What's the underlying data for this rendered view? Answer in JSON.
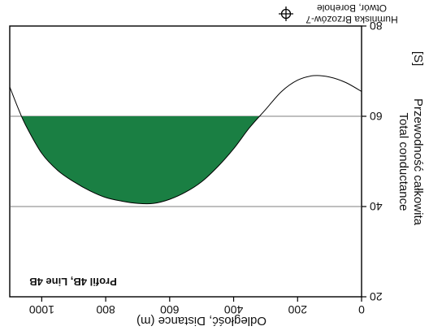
{
  "chart_data": {
    "type": "area",
    "title": "",
    "profile_label": "Profil 4B, Line 4B",
    "xlabel": "Odległość, Distance (m)",
    "ylabel_pl": "Przewodność całkowita",
    "ylabel_en": "Total conductance",
    "ylabel_unit": "[S]",
    "x_ticks": [
      "0",
      "200",
      "400",
      "600",
      "800",
      "1000"
    ],
    "y_ticks": [
      "20",
      "40",
      "60",
      "80"
    ],
    "xlim": [
      0,
      1100
    ],
    "ylim": [
      20,
      80
    ],
    "y_inverted": true,
    "grid": "horizontal",
    "fill_threshold": 60,
    "fill_color": "#1a7f43",
    "line_color": "#000000",
    "series": [
      {
        "x": [
          0,
          50,
          100,
          150,
          200,
          250,
          300,
          350,
          400,
          450,
          500,
          550,
          600,
          650,
          700,
          750,
          800,
          850,
          900,
          950,
          1000,
          1050,
          1075,
          1100
        ],
        "y": [
          65.5,
          67.5,
          68.7,
          69.0,
          68.0,
          65.5,
          61.5,
          57.5,
          52.8,
          48.8,
          45.5,
          43.2,
          41.6,
          40.7,
          40.7,
          41.2,
          42.0,
          43.5,
          45.5,
          48.0,
          51.8,
          58.0,
          62.0,
          66.5
        ]
      }
    ],
    "legend": {
      "symbol": "crosshair-circle",
      "label_pl": "Humniska Brzozów-7",
      "label_en": "Otwór, Borehole",
      "position": "bottom-right"
    }
  }
}
